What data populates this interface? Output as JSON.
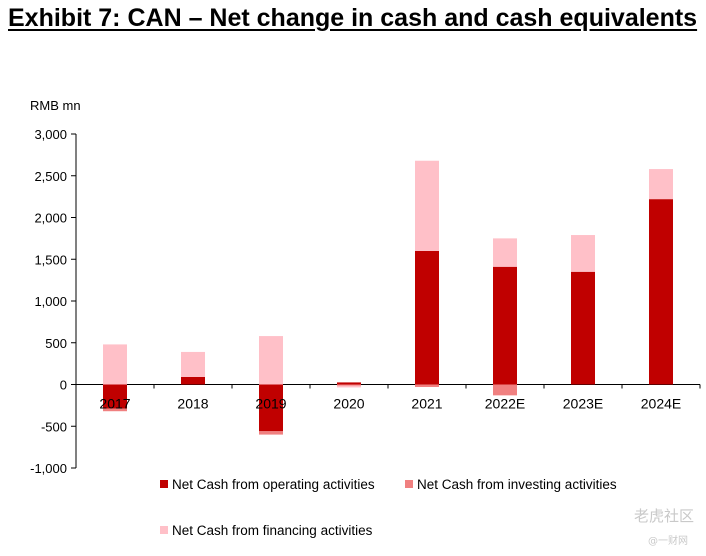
{
  "title": "Exhibit 7: CAN – Net change in cash and cash equivalents",
  "watermark": {
    "main": "老虎社区",
    "sub": "@一财网"
  },
  "chart_data": {
    "type": "bar",
    "stacked": true,
    "ylabel": "RMB mn",
    "ylim": [
      -1000,
      3000
    ],
    "yticks": [
      -1000,
      -500,
      0,
      500,
      1000,
      1500,
      2000,
      2500,
      3000
    ],
    "ytick_labels": [
      "-1,000",
      "-500",
      "0",
      "500",
      "1,000",
      "1,500",
      "2,000",
      "2,500",
      "3,000"
    ],
    "categories": [
      "2017",
      "2018",
      "2019",
      "2020",
      "2021",
      "2022E",
      "2023E",
      "2024E"
    ],
    "series": [
      {
        "name": "Net Cash from operating activities",
        "color": "#c00000",
        "values": [
          -290,
          90,
          -560,
          25,
          1600,
          1410,
          1350,
          2220
        ]
      },
      {
        "name": "Net Cash from investing activities",
        "color": "#f08080",
        "values": [
          -30,
          0,
          -40,
          -15,
          -30,
          -130,
          0,
          0
        ]
      },
      {
        "name": "Net Cash from financing activities",
        "color": "#ffc0c8",
        "values": [
          480,
          300,
          580,
          -20,
          1080,
          340,
          440,
          360
        ]
      }
    ],
    "legend": "bottom",
    "grid": false
  }
}
